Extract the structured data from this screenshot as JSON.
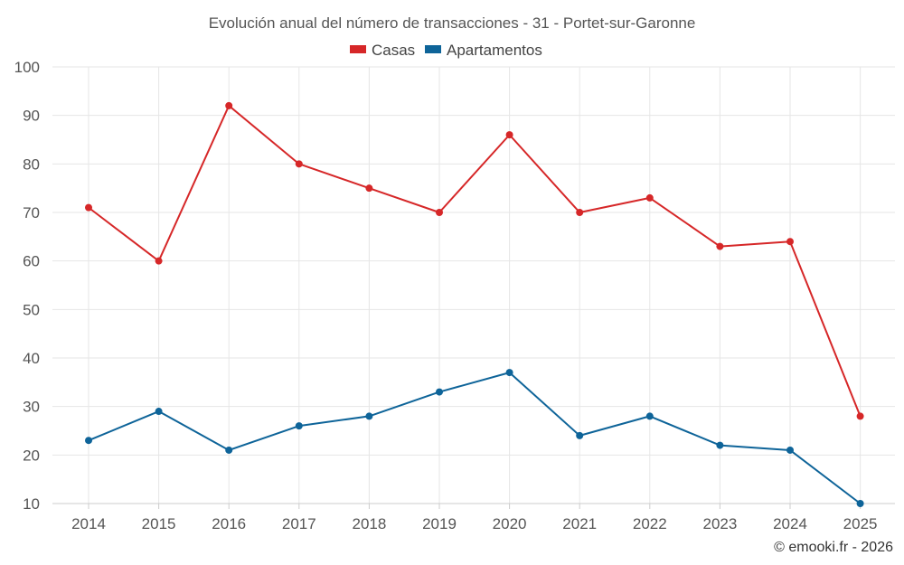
{
  "chart_data": {
    "type": "line",
    "title": "Evolución anual del número de transacciones - 31 - Portet-sur-Garonne",
    "categories": [
      "2014",
      "2015",
      "2016",
      "2017",
      "2018",
      "2019",
      "2020",
      "2021",
      "2022",
      "2023",
      "2024",
      "2025"
    ],
    "series": [
      {
        "name": "Casas",
        "color": "#d62728",
        "values": [
          71,
          60,
          92,
          80,
          75,
          70,
          86,
          70,
          73,
          63,
          64,
          28
        ]
      },
      {
        "name": "Apartamentos",
        "color": "#0e6499",
        "values": [
          23,
          29,
          21,
          26,
          28,
          33,
          37,
          24,
          28,
          22,
          21,
          10
        ]
      }
    ],
    "yticks": [
      "100",
      "90",
      "80",
      "70",
      "60",
      "50",
      "40",
      "30",
      "20",
      "10"
    ],
    "ylim": [
      10,
      100
    ],
    "grid": true,
    "legend": "top-center",
    "credit": "© emooki.fr - 2026"
  }
}
